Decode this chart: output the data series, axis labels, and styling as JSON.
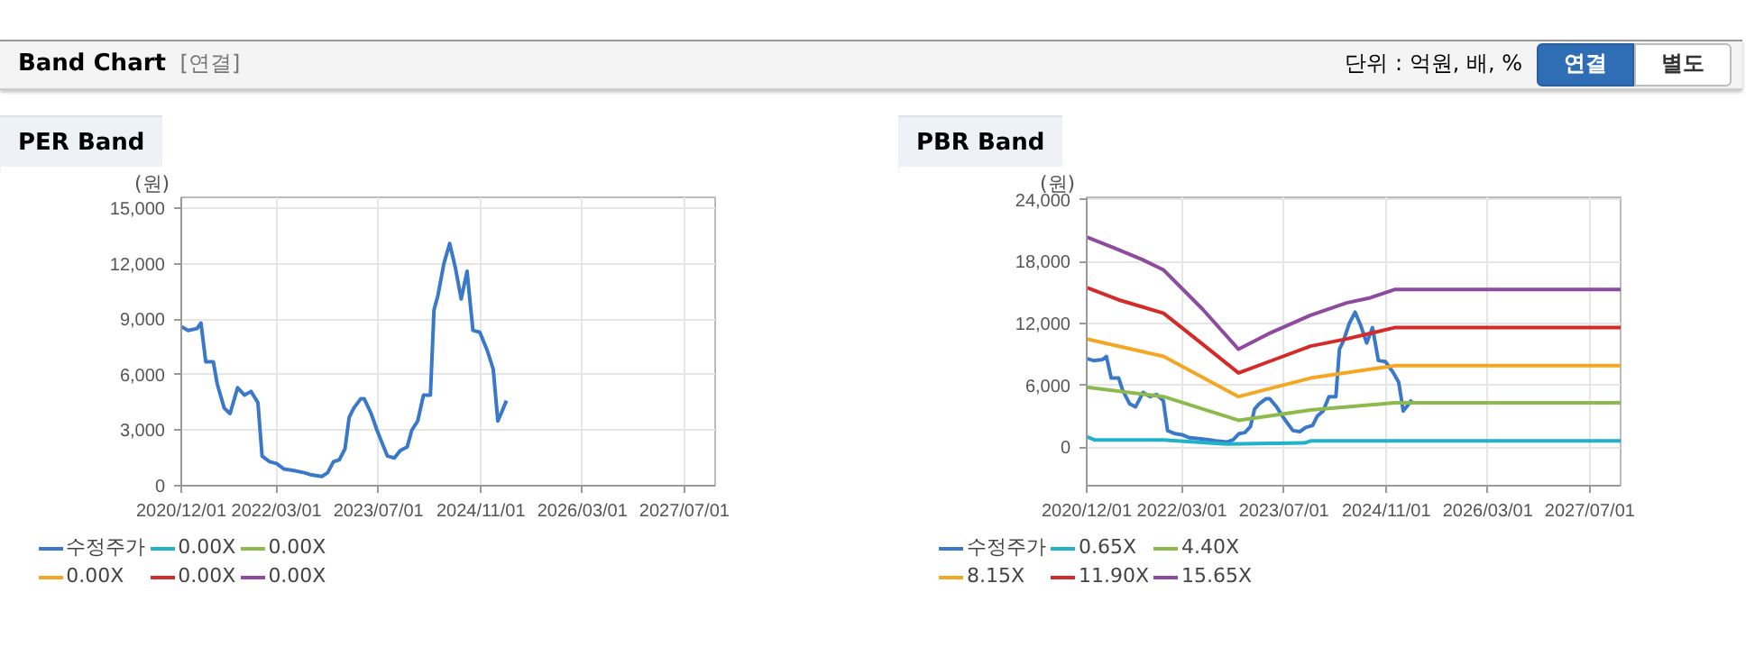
{
  "chart_data": [
    {
      "type": "line",
      "title": "PER Band",
      "ylabel": "(원)",
      "annotations": [
        "Band Chart",
        "[연결]",
        "단위 : 억원, 배, %",
        "연결",
        "별도"
      ],
      "xlim": [
        "2020-12-01",
        "2027-11-25"
      ],
      "ylim": [
        0,
        15600
      ],
      "xticks": [
        {
          "value": "2020-12-01",
          "label": "2020/12/01"
        },
        {
          "value": "2022-03-01",
          "label": "2022/03/01"
        },
        {
          "value": "2023-07-01",
          "label": "2023/07/01"
        },
        {
          "value": "2024-11-01",
          "label": "2024/11/01"
        },
        {
          "value": "2026-03-01",
          "label": "2026/03/01"
        },
        {
          "value": "2027-07-01",
          "label": "2027/07/01"
        }
      ],
      "yticks": [
        {
          "value": 0,
          "label": "0"
        },
        {
          "value": 3000,
          "label": "3,000"
        },
        {
          "value": 6000,
          "label": "6,000"
        },
        {
          "value": 9000,
          "label": "9,000"
        },
        {
          "value": 12000,
          "label": "12,000"
        },
        {
          "value": 15000,
          "label": "15,000"
        }
      ],
      "grid": true,
      "legend": "bottom",
      "series": [
        {
          "name": "수정주가",
          "color": "#3a78c9",
          "x": [
            "2020-12-01",
            "2021-01-03",
            "2021-02-14",
            "2021-03-05",
            "2021-03-28",
            "2021-05-03",
            "2021-05-22",
            "2021-06-24",
            "2021-07-22",
            "2021-08-27",
            "2021-09-29",
            "2021-10-30",
            "2021-12-02",
            "2021-12-22",
            "2022-01-27",
            "2022-03-01",
            "2022-04-06",
            "2022-05-31",
            "2022-07-12",
            "2022-08-09",
            "2022-10-03",
            "2022-10-31",
            "2022-11-28",
            "2022-12-26",
            "2023-01-22",
            "2023-02-11",
            "2023-03-05",
            "2023-04-07",
            "2023-04-24",
            "2023-05-27",
            "2023-06-24",
            "2023-07-22",
            "2023-08-13",
            "2023-09-15",
            "2023-10-13",
            "2023-11-15",
            "2023-12-07",
            "2024-01-04",
            "2024-02-01",
            "2024-03-05",
            "2024-03-22",
            "2024-04-10",
            "2024-05-08",
            "2024-06-05",
            "2024-07-02",
            "2024-07-30",
            "2024-08-27",
            "2024-09-24",
            "2024-10-27",
            "2024-12-02",
            "2024-12-30",
            "2025-01-21",
            "2025-02-09",
            "2025-03-03"
          ],
          "values": [
            8600,
            8400,
            8500,
            8800,
            6700,
            6700,
            5500,
            4200,
            3900,
            5300,
            4900,
            5100,
            4500,
            1600,
            1300,
            1200,
            900,
            800,
            700,
            600,
            500,
            700,
            1300,
            1400,
            2000,
            3700,
            4200,
            4700,
            4700,
            3900,
            3000,
            2200,
            1600,
            1500,
            1900,
            2100,
            3000,
            3500,
            4900,
            4900,
            9500,
            10300,
            12000,
            13100,
            11800,
            10100,
            11600,
            8400,
            8300,
            7300,
            6300,
            3500,
            4000,
            4600
          ]
        },
        {
          "name": "0.00X",
          "color": "#20b2c8"
        },
        {
          "name": "0.00X",
          "color": "#8dba4c"
        },
        {
          "name": "0.00X",
          "color": "#f5a623"
        },
        {
          "name": "0.00X",
          "color": "#d42a2a"
        },
        {
          "name": "0.00X",
          "color": "#8e4a9e"
        }
      ]
    },
    {
      "type": "line",
      "title": "PBR Band",
      "ylabel": "(원)",
      "xlim": [
        "2020-12-01",
        "2027-11-25"
      ],
      "ylim": [
        -3750,
        24250
      ],
      "xticks": [
        {
          "value": "2020-12-01",
          "label": "2020/12/01"
        },
        {
          "value": "2022-03-01",
          "label": "2022/03/01"
        },
        {
          "value": "2023-07-01",
          "label": "2023/07/01"
        },
        {
          "value": "2024-11-01",
          "label": "2024/11/01"
        },
        {
          "value": "2026-03-01",
          "label": "2026/03/01"
        },
        {
          "value": "2027-07-01",
          "label": "2027/07/01"
        }
      ],
      "yticks": [
        {
          "value": 0,
          "label": "0"
        },
        {
          "value": 6000,
          "label": "6,000"
        },
        {
          "value": 12000,
          "label": "12,000"
        },
        {
          "value": 18000,
          "label": "18,000"
        },
        {
          "value": 24000,
          "label": "24,000"
        }
      ],
      "grid": true,
      "legend": "bottom",
      "series": [
        {
          "name": "수정주가",
          "color": "#3a78c9",
          "x": [
            "2020-12-01",
            "2021-01-03",
            "2021-02-14",
            "2021-03-05",
            "2021-03-28",
            "2021-05-03",
            "2021-05-22",
            "2021-06-24",
            "2021-07-22",
            "2021-08-27",
            "2021-09-29",
            "2021-10-30",
            "2021-12-02",
            "2021-12-22",
            "2022-01-27",
            "2022-03-01",
            "2022-04-06",
            "2022-05-31",
            "2022-07-12",
            "2022-08-09",
            "2022-10-03",
            "2022-10-31",
            "2022-11-28",
            "2022-12-26",
            "2023-01-22",
            "2023-02-11",
            "2023-03-05",
            "2023-04-07",
            "2023-04-24",
            "2023-05-27",
            "2023-06-24",
            "2023-07-22",
            "2023-08-13",
            "2023-09-15",
            "2023-10-13",
            "2023-11-15",
            "2023-12-07",
            "2024-01-04",
            "2024-02-01",
            "2024-03-05",
            "2024-03-22",
            "2024-04-10",
            "2024-05-08",
            "2024-06-05",
            "2024-07-02",
            "2024-07-30",
            "2024-08-27",
            "2024-09-24",
            "2024-10-27",
            "2024-12-02",
            "2024-12-30",
            "2025-01-21",
            "2025-02-09",
            "2025-03-03"
          ],
          "values": [
            8600,
            8400,
            8500,
            8800,
            6700,
            6700,
            5500,
            4200,
            3900,
            5300,
            4900,
            5100,
            4500,
            1600,
            1300,
            1200,
            900,
            800,
            700,
            600,
            500,
            700,
            1300,
            1400,
            2000,
            3700,
            4200,
            4700,
            4700,
            3900,
            3000,
            2200,
            1600,
            1500,
            1900,
            2100,
            3000,
            3500,
            4900,
            4900,
            9500,
            10300,
            12000,
            13100,
            11800,
            10100,
            11600,
            8400,
            8300,
            7300,
            6300,
            3500,
            4000,
            4600
          ]
        },
        {
          "name": "0.65X",
          "color": "#20b2c8",
          "x": [
            "2020-12-01",
            "2021-01-07",
            "2021-12-03",
            "2022-09-30",
            "2023-10-07",
            "2023-11-05",
            "2027-11-25"
          ],
          "values": [
            1000,
            700,
            700,
            300,
            400,
            600,
            600
          ]
        },
        {
          "name": "4.40X",
          "color": "#8dba4c",
          "x": [
            "2020-12-01",
            "2021-12-03",
            "2022-11-26",
            "2023-11-05",
            "2024-12-10",
            "2027-11-25"
          ],
          "values": [
            5800,
            4900,
            2600,
            3600,
            4300,
            4300
          ]
        },
        {
          "name": "8.15X",
          "color": "#f5a623",
          "x": [
            "2020-12-01",
            "2021-12-03",
            "2022-11-26",
            "2023-11-05",
            "2024-12-10",
            "2027-11-25"
          ],
          "values": [
            10500,
            8800,
            4900,
            6700,
            7900,
            7900
          ]
        },
        {
          "name": "11.90X",
          "color": "#d42a2a",
          "x": [
            "2020-12-01",
            "2021-05-02",
            "2021-12-03",
            "2022-06-07",
            "2022-11-26",
            "2023-05-17",
            "2023-11-05",
            "2024-04-25",
            "2024-12-10",
            "2027-11-25"
          ],
          "values": [
            15500,
            14300,
            13000,
            10000,
            7200,
            8500,
            9800,
            10500,
            11600,
            11600
          ]
        },
        {
          "name": "15.65X",
          "color": "#8e4a9e",
          "x": [
            "2020-12-01",
            "2021-04-03",
            "2021-08-24",
            "2021-12-03",
            "2022-06-07",
            "2022-11-26",
            "2023-04-18",
            "2023-11-05",
            "2024-04-25",
            "2024-08-17",
            "2024-12-10",
            "2027-11-25"
          ],
          "values": [
            20400,
            19400,
            18200,
            17200,
            13400,
            9500,
            11000,
            12800,
            14000,
            14500,
            15300,
            15300
          ]
        }
      ]
    }
  ]
}
